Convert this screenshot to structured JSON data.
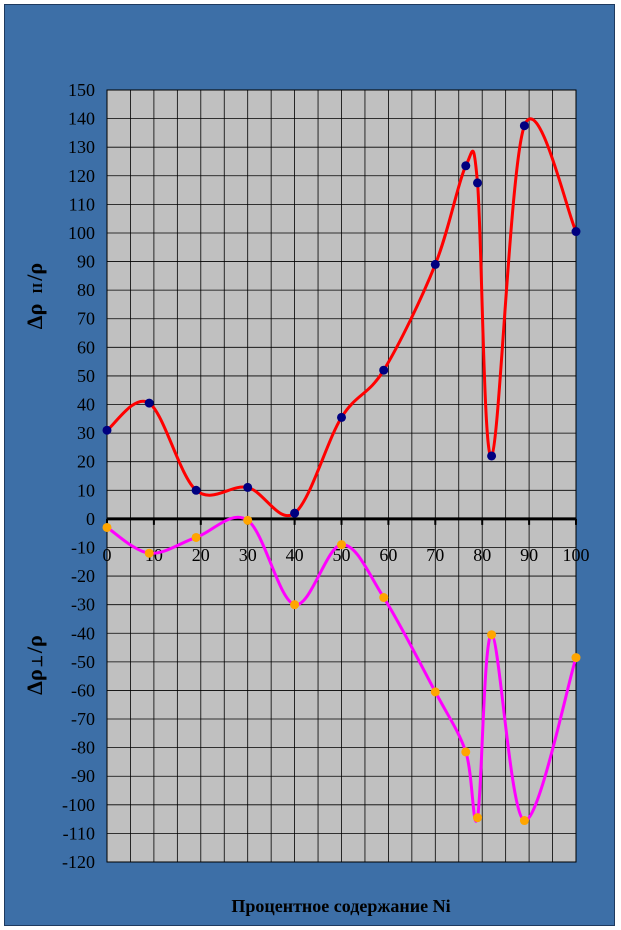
{
  "chart_data": {
    "type": "line",
    "title": "",
    "xlabel": "Процентное содержание Ni",
    "ylabel_parallel": "Δρ  ╓/ρ",
    "ylabel_parallel_main": "Δρ",
    "ylabel_parallel_sub": "II",
    "ylabel_parallel_tail": "/ρ",
    "ylabel_perp_main": "Δρ",
    "ylabel_perp_sub": "⊥",
    "ylabel_perp_tail": "/ρ",
    "xlim": [
      0,
      100
    ],
    "ylim": [
      -120,
      150
    ],
    "x_ticks": [
      0,
      10,
      20,
      30,
      40,
      50,
      60,
      70,
      80,
      90,
      100
    ],
    "y_ticks": [
      150,
      140,
      130,
      120,
      110,
      100,
      90,
      80,
      70,
      60,
      50,
      40,
      30,
      20,
      10,
      0,
      -10,
      -20,
      -30,
      -40,
      -50,
      -60,
      -70,
      -80,
      -90,
      -100,
      -110,
      -120
    ],
    "grid": true,
    "plot_background": "#c0c0c0",
    "series": [
      {
        "color": "#ff0000",
        "marker_color": "#000080",
        "x": [
          0,
          9,
          19,
          30,
          40,
          50,
          59,
          70,
          76.5,
          79,
          82,
          89,
          100
        ],
        "values": [
          31,
          40.5,
          10,
          11,
          2,
          35.5,
          52,
          89,
          123.5,
          117.5,
          22,
          137.5,
          100.5
        ]
      },
      {
        "color": "#ff00ff",
        "marker_color": "#ffa500",
        "x": [
          0,
          9,
          19,
          30,
          40,
          50,
          59,
          70,
          76.5,
          79,
          82,
          89,
          100
        ],
        "values": [
          -3,
          -12,
          -6.5,
          -0.5,
          -30,
          -9,
          -27.5,
          -60.5,
          -81.5,
          -104.5,
          -40.5,
          -105.5,
          -48.5
        ]
      }
    ]
  }
}
